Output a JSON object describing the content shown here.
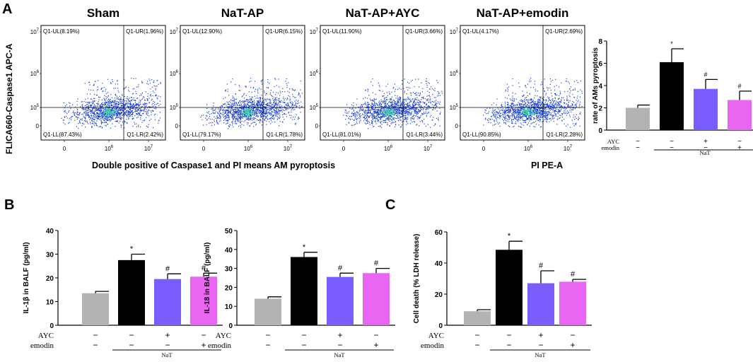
{
  "figure": {
    "panels": [
      {
        "letter": "A"
      },
      {
        "letter": "B"
      },
      {
        "letter": "C"
      }
    ],
    "flow": {
      "y_axis_label": "FLICA660-Caspase1 APC-A",
      "x_axis_label": "PI PE-A",
      "caption": "Double positive of Caspase1 and PI  means AM pyroptosis",
      "y_ticks": [
        "10^7",
        "10^6",
        "10^5",
        "0"
      ],
      "x_ticks": [
        "0",
        "10^6",
        "10^7"
      ],
      "plots": [
        {
          "title": "Sham",
          "ul": "Q1-UL(8.19%)",
          "ur": "Q1-UR(1.96%)",
          "ll": "Q1-LL(87.43%)",
          "lr": "Q1-LR(2.42%)"
        },
        {
          "title": "NaT-AP",
          "ul": "Q1-UL(12.90%)",
          "ur": "Q1-UR(6.15%)",
          "ll": "Q1-LL(79.17%)",
          "lr": "Q1-LR(1.78%)"
        },
        {
          "title": "NaT-AP+AYC",
          "ul": "Q1-UL(11.90%)",
          "ur": "Q1-UR(3.66%)",
          "ll": "Q1-LL(81.01%)",
          "lr": "Q1-LR(3.44%)"
        },
        {
          "title": "NaT-AP+emodin",
          "ul": "Q1-UL(4.17%)",
          "ur": "Q1-UR(2.69%)",
          "ll": "Q1-LL(90.85%)",
          "lr": "Q1-LR(2.28%)"
        }
      ]
    },
    "colors": [
      "#b3b3b3",
      "#000000",
      "#7a5cff",
      "#e866f2"
    ],
    "dot_color": "#1a3fd6",
    "dense_color": "#3fd0a0"
  },
  "chart_data": [
    {
      "id": "a_bar",
      "type": "bar",
      "title": "",
      "ylabel": "rate of AMs pyroptosis",
      "ylim": [
        0,
        8
      ],
      "yticks": [
        "0",
        "2",
        "4",
        "6",
        "8"
      ],
      "values": [
        2.0,
        6.1,
        3.7,
        2.7
      ],
      "errors": [
        0.25,
        1.2,
        0.85,
        0.8
      ],
      "annotations": [
        "",
        "*",
        "#",
        "#"
      ],
      "treatments": [
        {
          "label": "AYC",
          "signs": [
            "−",
            "−",
            "+",
            "−"
          ]
        },
        {
          "label": "emodin",
          "signs": [
            "−",
            "−",
            "−",
            "+"
          ]
        }
      ],
      "group_label": "NaT"
    },
    {
      "id": "b_il1b",
      "type": "bar",
      "title": "",
      "ylabel": "IL-1β in BALF (pg/ml)",
      "ylim": [
        0,
        40
      ],
      "yticks": [
        "0",
        "10",
        "20",
        "30",
        "40"
      ],
      "values": [
        13.5,
        27.5,
        19.5,
        20.5
      ],
      "errors": [
        0.8,
        2.5,
        2.2,
        1.5
      ],
      "annotations": [
        "",
        "*",
        "#",
        "#"
      ],
      "treatments": [
        {
          "label": "AYC",
          "signs": [
            "−",
            "−",
            "+",
            "−"
          ]
        },
        {
          "label": "emodin",
          "signs": [
            "−",
            "−",
            "−",
            "+"
          ]
        }
      ],
      "group_label": "NaT"
    },
    {
      "id": "b_il18",
      "type": "bar",
      "title": "",
      "ylabel": "IL-18 in BALF (pg/ml)",
      "ylim": [
        0,
        50
      ],
      "yticks": [
        "0",
        "10",
        "20",
        "30",
        "40",
        "50"
      ],
      "values": [
        14.0,
        36.0,
        25.5,
        27.5
      ],
      "errors": [
        1.0,
        2.5,
        2.0,
        2.5
      ],
      "annotations": [
        "",
        "*",
        "#",
        "#"
      ],
      "treatments": [
        {
          "label": "AYC",
          "signs": [
            "−",
            "−",
            "+",
            "−"
          ]
        },
        {
          "label": "emodin",
          "signs": [
            "−",
            "−",
            "−",
            "+"
          ]
        }
      ],
      "group_label": "NaT"
    },
    {
      "id": "c_ldh",
      "type": "bar",
      "title": "",
      "ylabel": "Cell death (% LDH release)",
      "ylim": [
        0,
        60
      ],
      "yticks": [
        "0",
        "20",
        "40",
        "60"
      ],
      "values": [
        9.0,
        48.5,
        27.0,
        28.0
      ],
      "errors": [
        1.0,
        5.5,
        8.0,
        1.5
      ],
      "annotations": [
        "",
        "*",
        "#",
        "#"
      ],
      "treatments": [
        {
          "label": "AYC",
          "signs": [
            "−",
            "−",
            "+",
            "−"
          ]
        },
        {
          "label": "emodin",
          "signs": [
            "−",
            "−",
            "−",
            "+"
          ]
        }
      ],
      "group_label": "NaT"
    }
  ]
}
